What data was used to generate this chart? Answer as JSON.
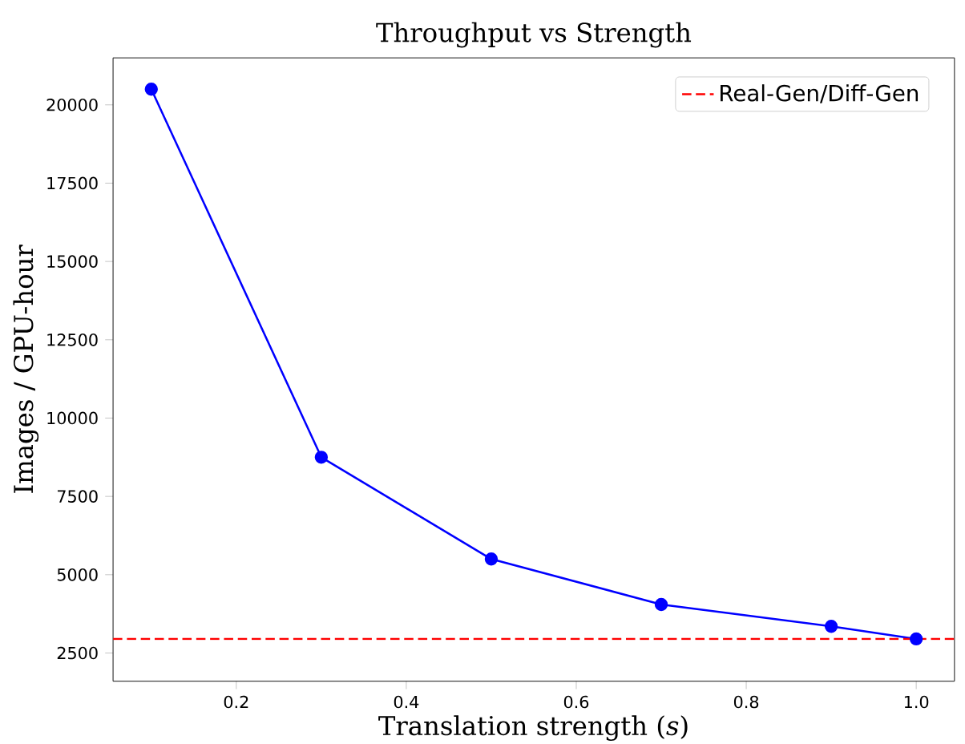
{
  "chart_data": {
    "type": "line",
    "title": "Throughput vs Strength",
    "xlabel": "Translation strength (*s*)",
    "ylabel": "Images / GPU-hour",
    "x": [
      0.1,
      0.3,
      0.5,
      0.7,
      0.9,
      1.0
    ],
    "series": [
      {
        "color": "#0000ff",
        "values": [
          20500,
          8750,
          5500,
          4050,
          3350,
          2950
        ]
      }
    ],
    "marker": "circle",
    "line_style": "solid",
    "ref_lines": [
      {
        "axis": "y",
        "value": 2950,
        "label": "Real-Gen/Diff-Gen",
        "color": "#ff0000",
        "line_style": "dashed"
      }
    ],
    "xlim": [
      0.055,
      1.045
    ],
    "ylim": [
      1600,
      21500
    ],
    "xticks": [
      {
        "value": 0.2,
        "label": "0.2"
      },
      {
        "value": 0.4,
        "label": "0.4"
      },
      {
        "value": 0.6,
        "label": "0.6"
      },
      {
        "value": 0.8,
        "label": "0.8"
      },
      {
        "value": 1.0,
        "label": "1.0"
      }
    ],
    "yticks": [
      2500,
      5000,
      7500,
      10000,
      12500,
      15000,
      17500,
      20000
    ],
    "legend": "top right",
    "grid": false
  }
}
